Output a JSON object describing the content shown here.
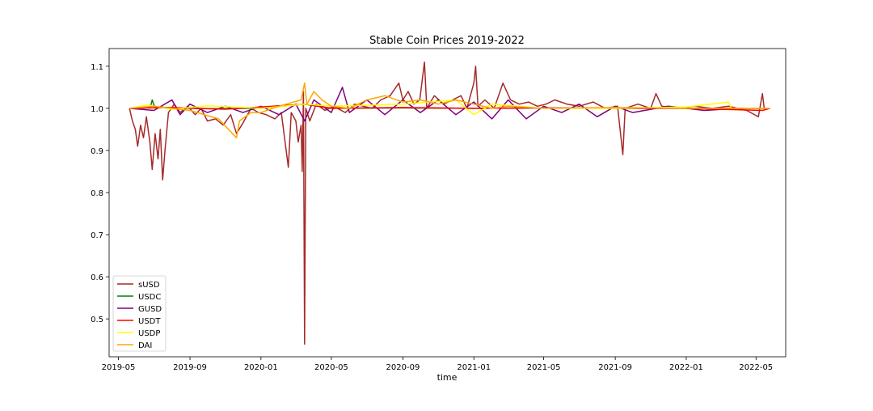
{
  "chart_data": {
    "type": "line",
    "title": "Stable Coin Prices 2019-2022",
    "xlabel": "time",
    "ylabel": "",
    "x_range": [
      "2019-04-15",
      "2022-06-21"
    ],
    "ylim": [
      0.41,
      1.142
    ],
    "x_ticks": [
      "2019-05",
      "2019-09",
      "2020-01",
      "2020-05",
      "2020-09",
      "2021-01",
      "2021-05",
      "2021-09",
      "2022-01",
      "2022-05"
    ],
    "y_ticks": [
      0.5,
      0.6,
      0.7,
      0.8,
      0.9,
      1.0,
      1.1
    ],
    "y_tick_labels": [
      "0.5",
      "0.6",
      "0.7",
      "0.8",
      "0.9",
      "1.0",
      "1.1"
    ],
    "grid": false,
    "legend_position": "lower-left",
    "series": [
      {
        "name": "sUSD",
        "color": "#a52a2a",
        "points": [
          [
            "2019-05-20",
            1.0
          ],
          [
            "2019-05-25",
            0.97
          ],
          [
            "2019-05-30",
            0.95
          ],
          [
            "2019-06-03",
            0.91
          ],
          [
            "2019-06-08",
            0.96
          ],
          [
            "2019-06-13",
            0.93
          ],
          [
            "2019-06-18",
            0.98
          ],
          [
            "2019-06-24",
            0.92
          ],
          [
            "2019-06-28",
            0.855
          ],
          [
            "2019-07-03",
            0.94
          ],
          [
            "2019-07-08",
            0.88
          ],
          [
            "2019-07-12",
            0.95
          ],
          [
            "2019-07-16",
            0.83
          ],
          [
            "2019-07-20",
            0.9
          ],
          [
            "2019-07-26",
            0.99
          ],
          [
            "2019-08-05",
            1.01
          ],
          [
            "2019-08-15",
            0.99
          ],
          [
            "2019-08-28",
            1.005
          ],
          [
            "2019-09-10",
            0.985
          ],
          [
            "2019-09-20",
            1.0
          ],
          [
            "2019-10-01",
            0.97
          ],
          [
            "2019-10-15",
            0.975
          ],
          [
            "2019-10-28",
            0.96
          ],
          [
            "2019-11-10",
            0.985
          ],
          [
            "2019-11-20",
            0.94
          ],
          [
            "2019-12-01",
            0.965
          ],
          [
            "2019-12-15",
            1.0
          ],
          [
            "2019-12-28",
            0.99
          ],
          [
            "2020-01-10",
            0.985
          ],
          [
            "2020-01-25",
            0.975
          ],
          [
            "2020-02-05",
            0.99
          ],
          [
            "2020-02-17",
            0.86
          ],
          [
            "2020-02-22",
            0.99
          ],
          [
            "2020-03-01",
            0.97
          ],
          [
            "2020-03-05",
            0.92
          ],
          [
            "2020-03-10",
            0.96
          ],
          [
            "2020-03-12",
            0.85
          ],
          [
            "2020-03-14",
            1.04
          ],
          [
            "2020-03-16",
            0.44
          ],
          [
            "2020-03-18",
            1.0
          ],
          [
            "2020-03-25",
            0.97
          ],
          [
            "2020-04-05",
            1.01
          ],
          [
            "2020-04-20",
            0.995
          ],
          [
            "2020-05-05",
            1.005
          ],
          [
            "2020-05-25",
            0.99
          ],
          [
            "2020-06-10",
            1.01
          ],
          [
            "2020-06-25",
            1.005
          ],
          [
            "2020-07-10",
            1.0
          ],
          [
            "2020-07-25",
            1.02
          ],
          [
            "2020-08-10",
            1.03
          ],
          [
            "2020-08-25",
            1.06
          ],
          [
            "2020-09-01",
            1.02
          ],
          [
            "2020-09-10",
            1.04
          ],
          [
            "2020-09-20",
            1.01
          ],
          [
            "2020-09-30",
            1.02
          ],
          [
            "2020-10-08",
            1.11
          ],
          [
            "2020-10-12",
            1.0
          ],
          [
            "2020-10-25",
            1.03
          ],
          [
            "2020-11-10",
            1.01
          ],
          [
            "2020-11-25",
            1.02
          ],
          [
            "2020-12-10",
            1.03
          ],
          [
            "2020-12-20",
            1.0
          ],
          [
            "2021-01-01",
            1.06
          ],
          [
            "2021-01-04",
            1.1
          ],
          [
            "2021-01-08",
            1.005
          ],
          [
            "2021-01-20",
            1.02
          ],
          [
            "2021-02-05",
            1.0
          ],
          [
            "2021-02-20",
            1.06
          ],
          [
            "2021-03-05",
            1.02
          ],
          [
            "2021-03-20",
            1.01
          ],
          [
            "2021-04-05",
            1.015
          ],
          [
            "2021-04-20",
            1.005
          ],
          [
            "2021-05-05",
            1.01
          ],
          [
            "2021-05-20",
            1.02
          ],
          [
            "2021-06-10",
            1.01
          ],
          [
            "2021-07-01",
            1.005
          ],
          [
            "2021-07-25",
            1.015
          ],
          [
            "2021-08-15",
            1.0
          ],
          [
            "2021-09-05",
            1.005
          ],
          [
            "2021-09-14",
            0.89
          ],
          [
            "2021-09-18",
            1.0
          ],
          [
            "2021-10-10",
            1.01
          ],
          [
            "2021-11-01",
            1.0
          ],
          [
            "2021-11-10",
            1.035
          ],
          [
            "2021-11-20",
            1.005
          ],
          [
            "2021-12-15",
            1.0
          ],
          [
            "2022-01-15",
            1.005
          ],
          [
            "2022-02-15",
            1.0
          ],
          [
            "2022-03-15",
            1.005
          ],
          [
            "2022-04-15",
            0.995
          ],
          [
            "2022-05-05",
            0.98
          ],
          [
            "2022-05-12",
            1.035
          ],
          [
            "2022-05-15",
            1.0
          ],
          [
            "2022-05-25",
            1.0
          ]
        ]
      },
      {
        "name": "USDC",
        "color": "#008000",
        "points": [
          [
            "2019-05-20",
            1.0
          ],
          [
            "2019-06-10",
            1.002
          ],
          [
            "2019-06-25",
            1.003
          ],
          [
            "2019-06-28",
            1.02
          ],
          [
            "2019-07-02",
            1.004
          ],
          [
            "2019-08-01",
            1.001
          ],
          [
            "2019-10-01",
            0.999
          ],
          [
            "2020-01-01",
            1.0
          ],
          [
            "2020-03-16",
            1.01
          ],
          [
            "2020-05-01",
            1.0
          ],
          [
            "2020-09-01",
            1.001
          ],
          [
            "2021-01-01",
            1.0
          ],
          [
            "2021-05-01",
            1.001
          ],
          [
            "2021-09-01",
            1.0
          ],
          [
            "2022-01-01",
            1.0
          ],
          [
            "2022-05-25",
            1.0
          ]
        ]
      },
      {
        "name": "GUSD",
        "color": "#800080",
        "points": [
          [
            "2019-05-20",
            1.0
          ],
          [
            "2019-07-01",
            0.995
          ],
          [
            "2019-08-01",
            1.02
          ],
          [
            "2019-08-15",
            0.985
          ],
          [
            "2019-09-01",
            1.01
          ],
          [
            "2019-10-01",
            0.99
          ],
          [
            "2019-11-01",
            1.005
          ],
          [
            "2019-12-01",
            0.99
          ],
          [
            "2020-01-01",
            1.005
          ],
          [
            "2020-02-01",
            0.985
          ],
          [
            "2020-03-01",
            1.01
          ],
          [
            "2020-03-16",
            0.97
          ],
          [
            "2020-04-01",
            1.02
          ],
          [
            "2020-05-01",
            0.99
          ],
          [
            "2020-05-20",
            1.05
          ],
          [
            "2020-06-01",
            0.99
          ],
          [
            "2020-07-01",
            1.02
          ],
          [
            "2020-08-01",
            0.985
          ],
          [
            "2020-09-01",
            1.02
          ],
          [
            "2020-10-01",
            0.99
          ],
          [
            "2020-11-01",
            1.02
          ],
          [
            "2020-12-01",
            0.985
          ],
          [
            "2021-01-01",
            1.015
          ],
          [
            "2021-02-01",
            0.975
          ],
          [
            "2021-03-01",
            1.02
          ],
          [
            "2021-04-01",
            0.975
          ],
          [
            "2021-05-01",
            1.005
          ],
          [
            "2021-06-01",
            0.99
          ],
          [
            "2021-07-01",
            1.01
          ],
          [
            "2021-08-01",
            0.98
          ],
          [
            "2021-09-01",
            1.005
          ],
          [
            "2021-10-01",
            0.99
          ],
          [
            "2021-12-01",
            1.005
          ],
          [
            "2022-02-01",
            0.995
          ],
          [
            "2022-04-01",
            1.0
          ],
          [
            "2022-05-25",
            1.0
          ]
        ]
      },
      {
        "name": "USDT",
        "color": "#ff0000",
        "points": [
          [
            "2019-05-20",
            1.0
          ],
          [
            "2019-08-01",
            1.002
          ],
          [
            "2019-11-01",
            0.998
          ],
          [
            "2020-03-16",
            1.01
          ],
          [
            "2020-05-01",
            1.0
          ],
          [
            "2020-09-01",
            1.002
          ],
          [
            "2021-01-01",
            1.0
          ],
          [
            "2021-05-01",
            1.001
          ],
          [
            "2021-09-01",
            1.0
          ],
          [
            "2022-01-01",
            1.0
          ],
          [
            "2022-05-12",
            0.995
          ],
          [
            "2022-05-25",
            1.0
          ]
        ]
      },
      {
        "name": "USDP",
        "color": "#ffff00",
        "points": [
          [
            "2019-05-20",
            1.0
          ],
          [
            "2019-06-20",
            1.008
          ],
          [
            "2019-08-01",
            0.998
          ],
          [
            "2019-10-01",
            1.006
          ],
          [
            "2020-01-01",
            1.0
          ],
          [
            "2020-03-16",
            1.01
          ],
          [
            "2020-05-01",
            1.005
          ],
          [
            "2020-09-01",
            1.01
          ],
          [
            "2020-12-01",
            1.02
          ],
          [
            "2021-01-01",
            0.985
          ],
          [
            "2021-02-01",
            1.01
          ],
          [
            "2021-05-01",
            1.0
          ],
          [
            "2021-09-01",
            1.0
          ],
          [
            "2022-01-01",
            1.003
          ],
          [
            "2022-03-15",
            1.015
          ],
          [
            "2022-03-20",
            1.0
          ],
          [
            "2022-05-25",
            1.0
          ]
        ]
      },
      {
        "name": "DAI",
        "color": "#ffa500",
        "points": [
          [
            "2019-05-20",
            1.0
          ],
          [
            "2019-07-01",
            1.005
          ],
          [
            "2019-09-01",
            0.995
          ],
          [
            "2019-10-20",
            0.975
          ],
          [
            "2019-11-20",
            0.93
          ],
          [
            "2019-11-25",
            0.97
          ],
          [
            "2019-12-15",
            0.99
          ],
          [
            "2020-01-01",
            0.99
          ],
          [
            "2020-02-01",
            1.005
          ],
          [
            "2020-03-10",
            1.02
          ],
          [
            "2020-03-16",
            1.06
          ],
          [
            "2020-03-20",
            1.01
          ],
          [
            "2020-04-01",
            1.04
          ],
          [
            "2020-04-15",
            1.02
          ],
          [
            "2020-05-01",
            1.005
          ],
          [
            "2020-06-01",
            1.0
          ],
          [
            "2020-07-01",
            1.02
          ],
          [
            "2020-08-01",
            1.03
          ],
          [
            "2020-09-01",
            1.015
          ],
          [
            "2020-10-01",
            1.02
          ],
          [
            "2020-11-01",
            1.01
          ],
          [
            "2020-12-01",
            1.02
          ],
          [
            "2021-01-01",
            1.01
          ],
          [
            "2021-02-01",
            1.0
          ],
          [
            "2021-03-01",
            1.005
          ],
          [
            "2021-05-01",
            1.0
          ],
          [
            "2021-09-01",
            1.002
          ],
          [
            "2022-01-01",
            1.0
          ],
          [
            "2022-05-25",
            1.0
          ]
        ]
      }
    ]
  }
}
